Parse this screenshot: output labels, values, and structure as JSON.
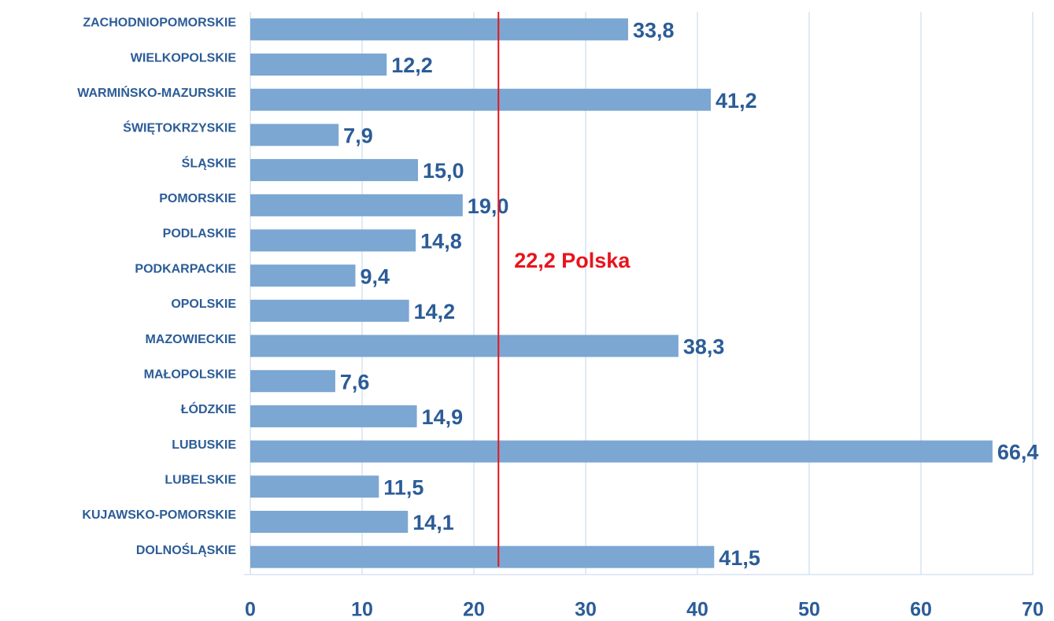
{
  "chart_data": {
    "type": "barh",
    "categories": [
      "ZACHODNIOPOMORSKIE",
      "WIELKOPOLSKIE",
      "WARMIŃSKO-MAZURSKIE",
      "ŚWIĘTOKRZYSKIE",
      "ŚLĄSKIE",
      "POMORSKIE",
      "PODLASKIE",
      "PODKARPACKIE",
      "OPOLSKIE",
      "MAZOWIECKIE",
      "MAŁOPOLSKIE",
      "ŁÓDZKIE",
      "LUBUSKIE",
      "LUBELSKIE",
      "KUJAWSKO-POMORSKIE",
      "DOLNOŚLĄSKIE"
    ],
    "values": [
      33.8,
      12.2,
      41.2,
      7.9,
      15.0,
      19.0,
      14.8,
      9.4,
      14.2,
      38.3,
      7.6,
      14.9,
      66.4,
      11.5,
      14.1,
      41.5
    ],
    "value_labels": [
      "33,8",
      "12,2",
      "41,2",
      "7,9",
      "15,0",
      "19,0",
      "14,8",
      "9,4",
      "14,2",
      "38,3",
      "7,6",
      "14,9",
      "66,4",
      "11,5",
      "14,1",
      "41,5"
    ],
    "color": "#7ba7d2",
    "xlim": [
      0,
      70
    ],
    "xticks": [
      0,
      10,
      20,
      30,
      40,
      50,
      60,
      70
    ],
    "grid": true,
    "reference": {
      "value": 22.2,
      "label": "22,2 Polska",
      "color": "#e8141c"
    }
  }
}
